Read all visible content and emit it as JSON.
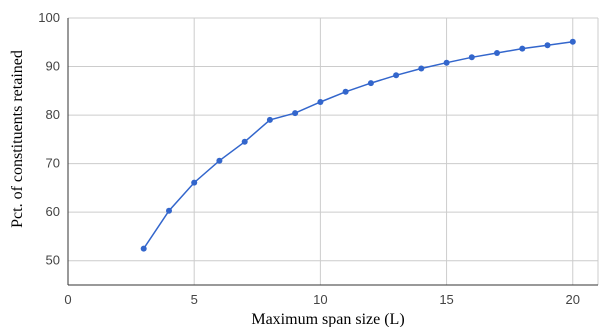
{
  "chart_data": {
    "type": "line",
    "title": "",
    "xlabel": "Maximum span size (L)",
    "ylabel": "Pct. of constituents retained",
    "xlim": [
      0,
      21
    ],
    "ylim": [
      45,
      100
    ],
    "x_ticks": [
      0,
      5,
      10,
      15,
      20
    ],
    "y_ticks": [
      50,
      60,
      70,
      80,
      90,
      100
    ],
    "grid": true,
    "legend": "none",
    "series": [
      {
        "color": "#3366cc",
        "x": [
          3,
          4,
          5,
          6,
          7,
          8,
          9,
          10,
          11,
          12,
          13,
          14,
          15,
          16,
          17,
          18,
          19,
          20
        ],
        "y": [
          52.5,
          60.3,
          66.1,
          70.6,
          74.5,
          79.0,
          80.4,
          82.7,
          84.8,
          86.6,
          88.2,
          89.6,
          90.8,
          91.9,
          92.8,
          93.7,
          94.4,
          95.1
        ]
      }
    ],
    "colors": {
      "grid": "#cccccc",
      "axis": "#333333"
    }
  }
}
